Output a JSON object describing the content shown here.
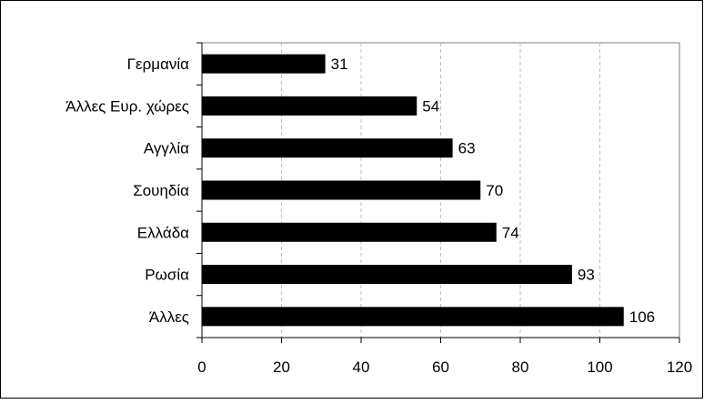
{
  "chart_data": {
    "type": "bar",
    "orientation": "horizontal",
    "categories": [
      "Γερμανία",
      "Άλλες Ευρ. χώρες",
      "Αγγλία",
      "Σουηδία",
      "Ελλάδα",
      "Ρωσία",
      "Άλλες"
    ],
    "values": [
      31,
      54,
      63,
      70,
      74,
      93,
      106
    ],
    "value_labels": [
      "31",
      "54",
      "63",
      "70",
      "74",
      "93",
      "106"
    ],
    "xlim": [
      0,
      120
    ],
    "x_ticks": [
      "0",
      "20",
      "40",
      "60",
      "80",
      "100",
      "120"
    ],
    "grid": "vertical dashed",
    "legend": "none",
    "colors": {
      "bar": "#000000",
      "grid": "#c0c0c0",
      "frame": "#000000"
    },
    "title": "",
    "xlabel": "",
    "ylabel": ""
  }
}
